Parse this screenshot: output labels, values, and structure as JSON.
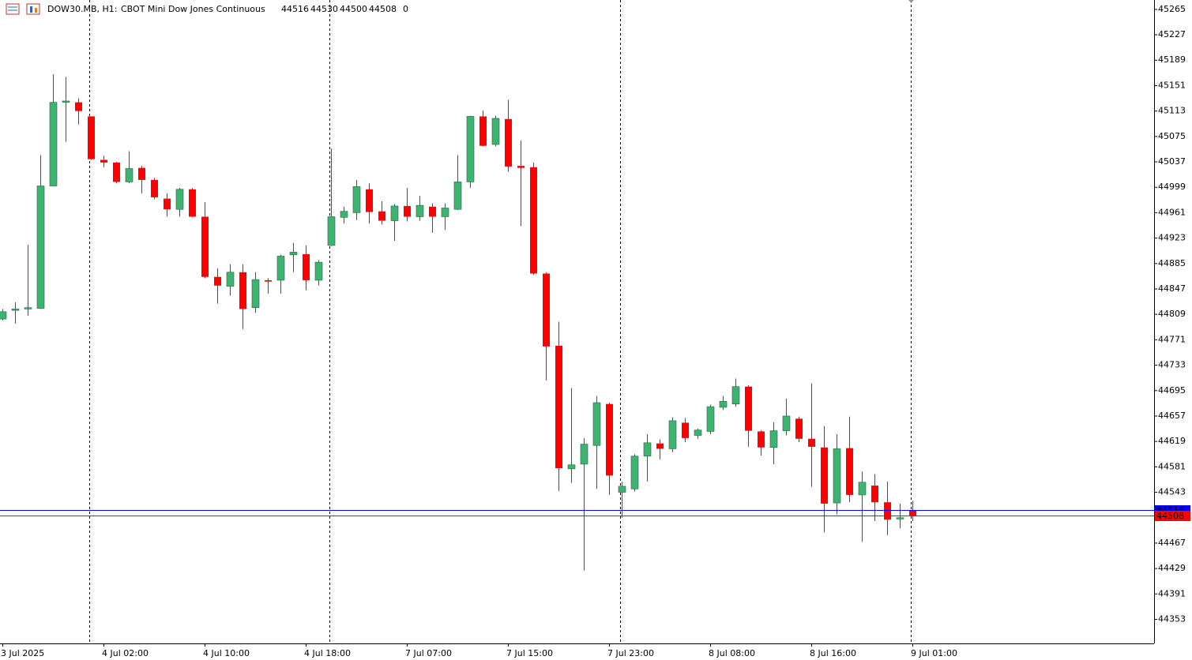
{
  "chart_data": {
    "type": "candlestick",
    "symbol": "DOW30.MB, H1:",
    "description": "CBOT Mini Dow Jones Continuous",
    "volume": 0,
    "categories": [
      "3 Jul 2025",
      null,
      null,
      null,
      null,
      null,
      null,
      null,
      "4 Jul 02:00",
      null,
      null,
      null,
      null,
      null,
      null,
      null,
      "4 Jul 10:00",
      null,
      null,
      null,
      null,
      null,
      null,
      null,
      "4 Jul 18:00",
      null,
      null,
      null,
      null,
      null,
      null,
      null,
      "7 Jul 07:00",
      null,
      null,
      null,
      null,
      null,
      null,
      null,
      "7 Jul 15:00",
      null,
      null,
      null,
      null,
      null,
      null,
      null,
      "7 Jul 23:00",
      null,
      null,
      null,
      null,
      null,
      null,
      null,
      "8 Jul 08:00",
      null,
      null,
      null,
      null,
      null,
      null,
      null,
      "8 Jul 16:00",
      null,
      null,
      null,
      null,
      null,
      null,
      null,
      "9 Jul 01:00"
    ],
    "open": [
      44802,
      44815,
      44817,
      44818,
      45001,
      45126,
      45126,
      45105,
      45040,
      45036,
      45007,
      45028,
      45010,
      44982,
      44966,
      44996,
      44955,
      44865,
      44851,
      44872,
      44819,
      44860,
      44860,
      44898,
      44899,
      44860,
      44912,
      44954,
      44961,
      44996,
      44963,
      44949,
      44971,
      44955,
      44970,
      44955,
      44966,
      45007,
      45105,
      45063,
      45101,
      45031,
      45029,
      44870,
      44762,
      44578,
      44585,
      44613,
      44675,
      44543,
      44548,
      44597,
      44616,
      44608,
      44647,
      44628,
      44634,
      44670,
      44675,
      44701,
      44634,
      44610,
      44635,
      44653,
      44623,
      44610,
      44527,
      44609,
      44539,
      44553,
      44528,
      44503,
      44516
    ],
    "high": [
      44817,
      44827,
      44913,
      45047,
      45168,
      45164,
      45132,
      45105,
      45046,
      45037,
      45053,
      45031,
      45013,
      44990,
      44998,
      44998,
      44977,
      44878,
      44884,
      44884,
      44872,
      44863,
      44898,
      44916,
      44912,
      44890,
      45057,
      44970,
      45010,
      45005,
      44978,
      44974,
      44998,
      44986,
      44975,
      44975,
      45047,
      45106,
      45114,
      45106,
      45130,
      45069,
      45036,
      44872,
      44798,
      44699,
      44624,
      44687,
      44677,
      44559,
      44600,
      44630,
      44622,
      44655,
      44654,
      44638,
      44674,
      44687,
      44713,
      44703,
      44636,
      44648,
      44683,
      44656,
      44706,
      44642,
      44630,
      44656,
      44574,
      44570,
      44559,
      44526,
      44530
    ],
    "low": [
      44800,
      44795,
      44807,
      44817,
      45001,
      45067,
      45093,
      45040,
      45029,
      45005,
      45005,
      44990,
      44981,
      44955,
      44955,
      44954,
      44863,
      44825,
      44837,
      44787,
      44811,
      44840,
      44840,
      44872,
      44845,
      44852,
      44911,
      44945,
      44950,
      44945,
      44943,
      44919,
      44948,
      44949,
      44931,
      44935,
      44965,
      44998,
      45060,
      45060,
      45022,
      44941,
      44868,
      44710,
      44545,
      44557,
      44426,
      44548,
      44539,
      44505,
      44544,
      44559,
      44592,
      44603,
      44618,
      44623,
      44630,
      44666,
      44671,
      44611,
      44598,
      44585,
      44628,
      44618,
      44551,
      44483,
      44510,
      44528,
      44469,
      44500,
      44479,
      44489,
      44500
    ],
    "close": [
      44813,
      44817,
      44819,
      45001,
      45126,
      45128,
      45113,
      45041,
      45036,
      45007,
      45027,
      45010,
      44984,
      44966,
      44996,
      44955,
      44865,
      44852,
      44872,
      44817,
      44861,
      44858,
      44896,
      44902,
      44860,
      44887,
      44955,
      44963,
      45000,
      44962,
      44949,
      44971,
      44955,
      44972,
      44955,
      44968,
      45007,
      45105,
      45061,
      45102,
      45030,
      45028,
      44870,
      44761,
      44579,
      44584,
      44615,
      44677,
      44568,
      44552,
      44597,
      44617,
      44608,
      44650,
      44624,
      44636,
      44671,
      44679,
      44701,
      44635,
      44610,
      44635,
      44657,
      44623,
      44611,
      44526,
      44608,
      44539,
      44558,
      44528,
      44502,
      44505,
      44508
    ],
    "up_color": "#3cb371",
    "down_color": "#ff0000",
    "ylim": [
      44317,
      45279
    ],
    "yticks": [
      45265,
      45227,
      45189,
      45151,
      45113,
      45075,
      45037,
      44999,
      44961,
      44923,
      44885,
      44847,
      44809,
      44771,
      44733,
      44695,
      44657,
      44619,
      44581,
      44543,
      44467,
      44429,
      44391,
      44353
    ],
    "price_lines": [
      {
        "value": 44516,
        "color": "#0000ff"
      },
      {
        "value": 44508,
        "color": "#ff0000"
      }
    ]
  }
}
